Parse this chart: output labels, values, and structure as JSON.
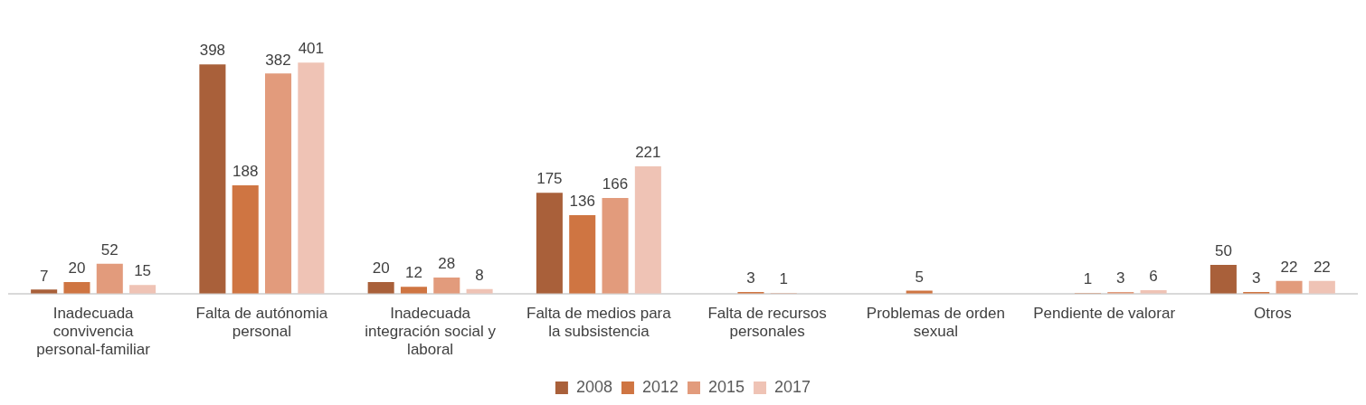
{
  "chart_data": {
    "type": "bar",
    "categories": [
      "Inadecuada convivencia personal-familiar",
      "Falta de autónomia personal",
      "Inadecuada integración social y laboral",
      "Falta de medios para la subsistencia",
      "Falta de recursos personales",
      "Problemas de orden sexual",
      "Pendiente de valorar",
      "Otros"
    ],
    "series": [
      {
        "name": "2008",
        "color": "#a9603a",
        "values": [
          7,
          398,
          20,
          175,
          null,
          null,
          null,
          50
        ]
      },
      {
        "name": "2012",
        "color": "#cf7542",
        "values": [
          20,
          188,
          12,
          136,
          3,
          5,
          1,
          3
        ]
      },
      {
        "name": "2015",
        "color": "#e29b7c",
        "values": [
          52,
          382,
          28,
          166,
          1,
          null,
          3,
          22
        ]
      },
      {
        "name": "2017",
        "color": "#efc3b5",
        "values": [
          15,
          401,
          8,
          221,
          null,
          null,
          6,
          22
        ]
      }
    ],
    "data_labels": true,
    "legend": "bottom",
    "grid": false
  }
}
